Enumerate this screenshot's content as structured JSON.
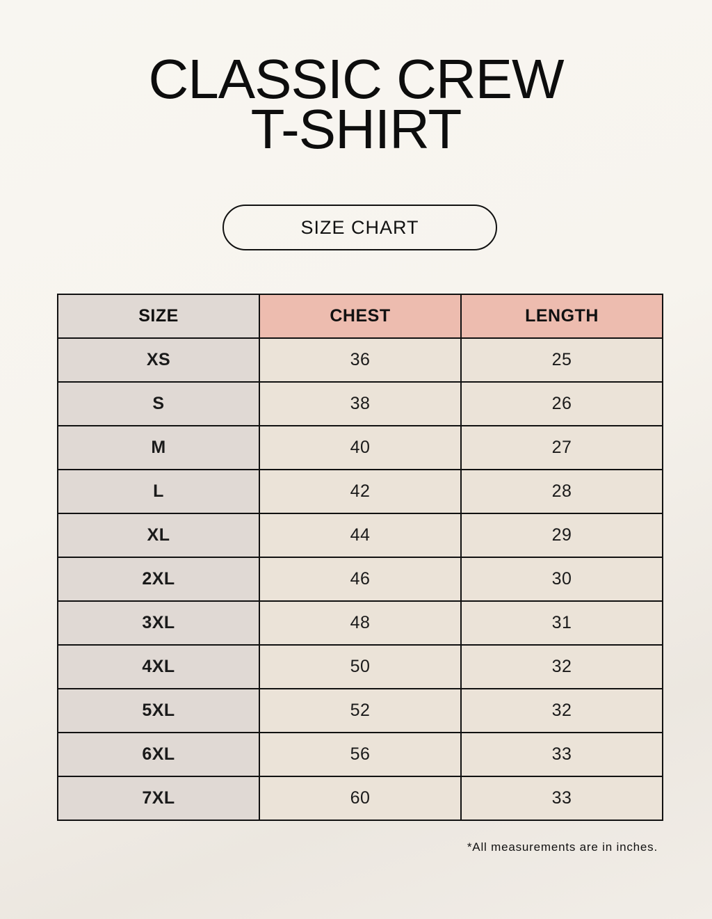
{
  "title_lines": [
    "CLASSIC CREW",
    "T-SHIRT"
  ],
  "badge": "SIZE CHART",
  "colors": {
    "size_column": "#e0d9d4",
    "header_accent": "#edbcaf",
    "cell": "#ebe3d8"
  },
  "table": {
    "headers": [
      "SIZE",
      "CHEST",
      "LENGTH"
    ],
    "rows": [
      [
        "XS",
        "36",
        "25"
      ],
      [
        "S",
        "38",
        "26"
      ],
      [
        "M",
        "40",
        "27"
      ],
      [
        "L",
        "42",
        "28"
      ],
      [
        "XL",
        "44",
        "29"
      ],
      [
        "2XL",
        "46",
        "30"
      ],
      [
        "3XL",
        "48",
        "31"
      ],
      [
        "4XL",
        "50",
        "32"
      ],
      [
        "5XL",
        "52",
        "32"
      ],
      [
        "6XL",
        "56",
        "33"
      ],
      [
        "7XL",
        "60",
        "33"
      ]
    ]
  },
  "footnote": "*All measurements are in inches."
}
